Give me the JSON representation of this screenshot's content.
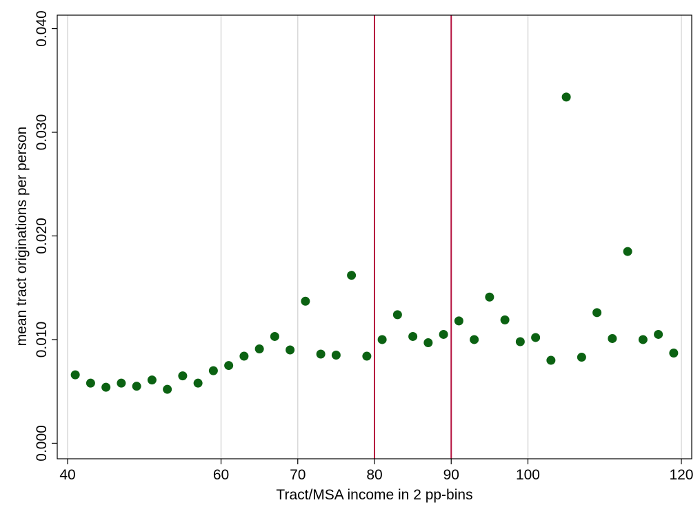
{
  "chart_data": {
    "type": "scatter",
    "x_label": "Tract/MSA income in 2 pp-bins",
    "y_label": "mean tract originations per person",
    "x": [
      41,
      43,
      45,
      47,
      49,
      51,
      53,
      55,
      57,
      59,
      61,
      63,
      65,
      67,
      69,
      71,
      73,
      75,
      77,
      79,
      81,
      83,
      85,
      87,
      89,
      91,
      93,
      95,
      97,
      99,
      101,
      103,
      105,
      107,
      109,
      111,
      113,
      115,
      117,
      119
    ],
    "series": [
      {
        "color": "#0b6212",
        "values": [
          0.0066,
          0.0058,
          0.0054,
          0.0058,
          0.0055,
          0.0061,
          0.0052,
          0.0065,
          0.0058,
          0.007,
          0.0075,
          0.0084,
          0.0091,
          0.0103,
          0.009,
          0.0137,
          0.0086,
          0.0085,
          0.0162,
          0.0084,
          0.01,
          0.0124,
          0.0103,
          0.0097,
          0.0105,
          0.0118,
          0.01,
          0.0141,
          0.0119,
          0.0098,
          0.0102,
          0.008,
          0.0334,
          0.0083,
          0.0126,
          0.0101,
          0.0185,
          0.01,
          0.0105,
          0.0087
        ]
      }
    ],
    "xlim": [
      38.65,
      121.35
    ],
    "xticks": [
      40,
      60,
      70,
      80,
      90,
      100,
      120
    ],
    "ylim": [
      -0.0015,
      0.0413
    ],
    "yticks": [
      {
        "value": 0,
        "label": "0.000"
      },
      {
        "value": 0.01,
        "label": "0.010"
      },
      {
        "value": 0.02,
        "label": "0.020"
      },
      {
        "value": 0.03,
        "label": "0.030"
      },
      {
        "value": 0.04,
        "label": "0.040"
      }
    ],
    "grid": true,
    "reference_lines": [
      80,
      90
    ],
    "reference_color": "#b5123f"
  }
}
